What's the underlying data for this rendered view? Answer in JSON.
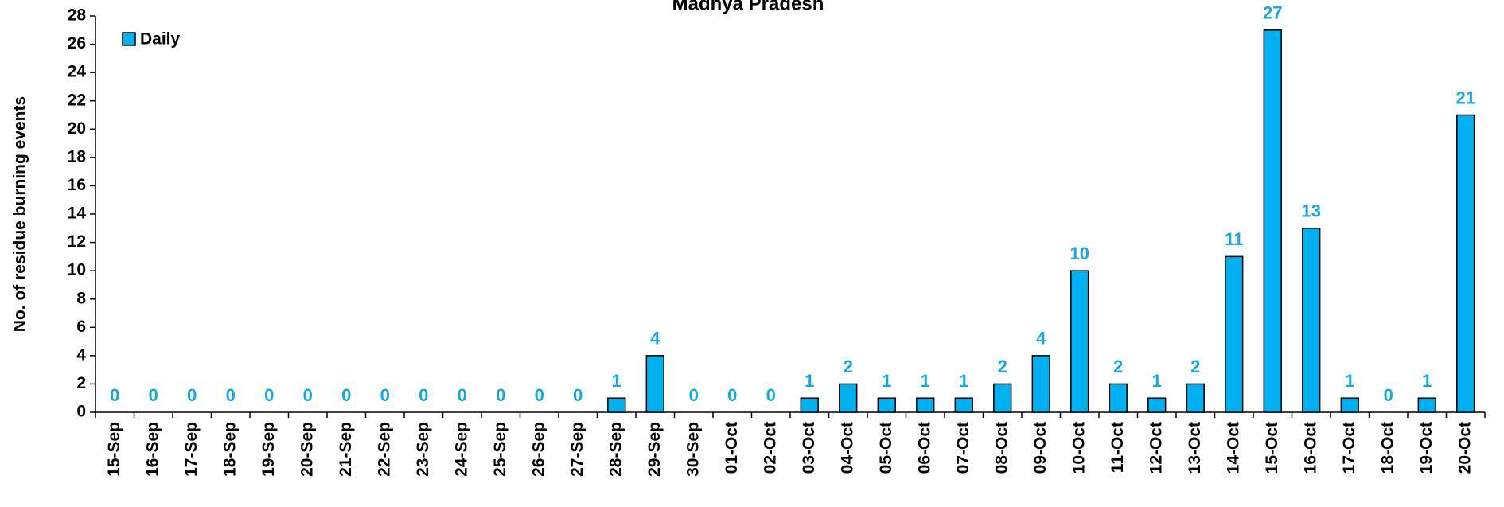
{
  "chart_data": {
    "type": "bar",
    "title": "Madhya Pradesh",
    "y_axis_label": "No. of residue burning events",
    "legend": "Daily",
    "legend_position": "top-left",
    "color": "#00b0f0",
    "categories": [
      "15-Sep",
      "16-Sep",
      "17-Sep",
      "18-Sep",
      "19-Sep",
      "20-Sep",
      "21-Sep",
      "22-Sep",
      "23-Sep",
      "24-Sep",
      "25-Sep",
      "26-Sep",
      "27-Sep",
      "28-Sep",
      "29-Sep",
      "30-Sep",
      "01-Oct",
      "02-Oct",
      "03-Oct",
      "04-Oct",
      "05-Oct",
      "06-Oct",
      "07-Oct",
      "08-Oct",
      "09-Oct",
      "10-Oct",
      "11-Oct",
      "12-Oct",
      "13-Oct",
      "14-Oct",
      "15-Oct",
      "16-Oct",
      "17-Oct",
      "18-Oct",
      "19-Oct",
      "20-Oct"
    ],
    "values": [
      0,
      0,
      0,
      0,
      0,
      0,
      0,
      0,
      0,
      0,
      0,
      0,
      0,
      1,
      4,
      0,
      0,
      0,
      1,
      2,
      1,
      1,
      1,
      2,
      4,
      10,
      2,
      1,
      2,
      11,
      27,
      13,
      1,
      0,
      1,
      21
    ],
    "ylim": [
      0,
      28
    ],
    "yticks": [
      0,
      2,
      4,
      6,
      8,
      10,
      12,
      14,
      16,
      18,
      20,
      22,
      24,
      26,
      28
    ],
    "grid": false
  }
}
